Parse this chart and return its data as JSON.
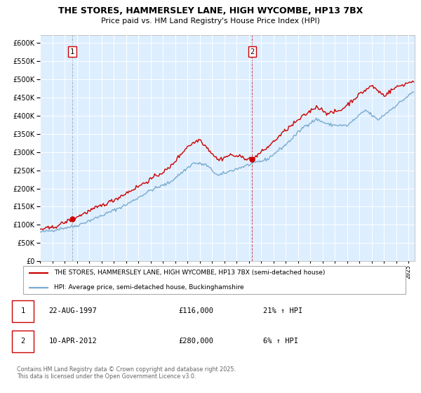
{
  "title": "THE STORES, HAMMERSLEY LANE, HIGH WYCOMBE, HP13 7BX",
  "subtitle": "Price paid vs. HM Land Registry's House Price Index (HPI)",
  "legend_line1": "THE STORES, HAMMERSLEY LANE, HIGH WYCOMBE, HP13 7BX (semi-detached house)",
  "legend_line2": "HPI: Average price, semi-detached house, Buckinghamshire",
  "transaction1_date": "22-AUG-1997",
  "transaction1_price": 116000,
  "transaction1_hpi": "21% ↑ HPI",
  "transaction2_date": "10-APR-2012",
  "transaction2_price": 280000,
  "transaction2_hpi": "6% ↑ HPI",
  "footer": "Contains HM Land Registry data © Crown copyright and database right 2025.\nThis data is licensed under the Open Government Licence v3.0.",
  "line_color_property": "#cc0000",
  "line_color_hpi": "#7aabcf",
  "bg_color": "#ddeeff",
  "vline1_color": "#888888",
  "vline2_color": "#cc0000",
  "vline1_x": 1997.64,
  "vline2_x": 2012.27,
  "dot1_x": 1997.64,
  "dot1_y": 116000,
  "dot2_x": 2012.27,
  "dot2_y": 280000,
  "ylim": [
    0,
    620000
  ],
  "xlim": [
    1995.0,
    2025.5
  ]
}
